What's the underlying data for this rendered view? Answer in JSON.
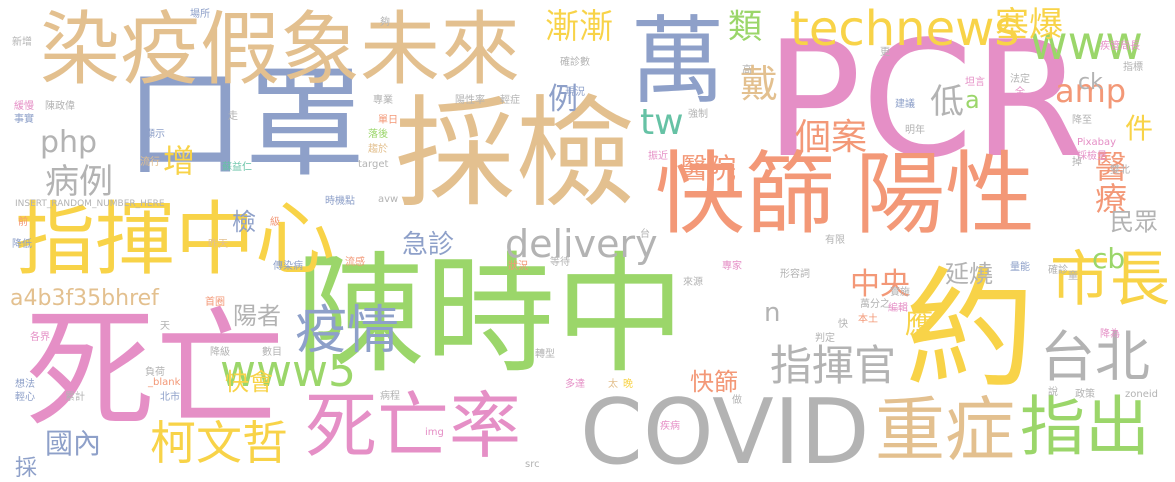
{
  "words": [
    {
      "text": "PCR",
      "color": "#e58fc6"
    },
    {
      "text": "陳時中",
      "color": "#9bd66a"
    },
    {
      "text": "採檢",
      "color": "#e3c08f"
    },
    {
      "text": "口罩",
      "color": "#8ea0c9"
    },
    {
      "text": "染疫假象未來",
      "color": "#e3c08f"
    },
    {
      "text": "快篩",
      "color": "#f39877"
    },
    {
      "text": "陽性",
      "color": "#f39877"
    },
    {
      "text": "指揮中心",
      "color": "#f8d348"
    },
    {
      "text": "死亡",
      "color": "#e58fc6"
    },
    {
      "text": "約",
      "color": "#f8d348"
    },
    {
      "text": "萬",
      "color": "#8ea0c9"
    },
    {
      "text": "COVID",
      "color": "#b3b3b3"
    },
    {
      "text": "死亡率",
      "color": "#e58fc6"
    },
    {
      "text": "重症",
      "color": "#e3c08f"
    },
    {
      "text": "指出",
      "color": "#9bd66a"
    },
    {
      "text": "市長",
      "color": "#f8d348"
    },
    {
      "text": "台北",
      "color": "#b3b3b3"
    },
    {
      "text": "疫情",
      "color": "#8ea0c9"
    },
    {
      "text": "technews",
      "color": "#f8d348"
    },
    {
      "text": "www",
      "color": "#9bd66a"
    },
    {
      "text": "柯文哲",
      "color": "#f8d348"
    },
    {
      "text": "指揮官",
      "color": "#b3b3b3"
    },
    {
      "text": "www5",
      "color": "#9bd66a"
    },
    {
      "text": "delivery",
      "color": "#b3b3b3"
    },
    {
      "text": "漸漸",
      "color": "#f8d348"
    },
    {
      "text": "類",
      "color": "#9bd66a"
    },
    {
      "text": "塞爆",
      "color": "#f8d348"
    },
    {
      "text": "amp",
      "color": "#f39877"
    },
    {
      "text": "ck",
      "color": "#b3b3b3"
    },
    {
      "text": "tw",
      "color": "#66c2a5"
    },
    {
      "text": "戴",
      "color": "#e3c08f"
    },
    {
      "text": "例",
      "color": "#8ea0c9"
    },
    {
      "text": "低",
      "color": "#b3b3b3"
    },
    {
      "text": "個案",
      "color": "#f39877"
    },
    {
      "text": "件",
      "color": "#f8d348"
    },
    {
      "text": "醫療",
      "color": "#f39877"
    },
    {
      "text": "醫院",
      "color": "#f39877"
    },
    {
      "text": "民眾",
      "color": "#b3b3b3"
    },
    {
      "text": "cb",
      "color": "#9bd66a"
    },
    {
      "text": "php",
      "color": "#b3b3b3"
    },
    {
      "text": "病例",
      "color": "#b3b3b3"
    },
    {
      "text": "增",
      "color": "#f8d348"
    },
    {
      "text": "中央",
      "color": "#f39877"
    },
    {
      "text": "延燒",
      "color": "#b3b3b3"
    },
    {
      "text": "急診",
      "color": "#8ea0c9"
    },
    {
      "text": "檢",
      "color": "#8ea0c9"
    },
    {
      "text": "陽者",
      "color": "#b3b3b3"
    },
    {
      "text": "a4b3f35bhref",
      "color": "#e3c08f"
    },
    {
      "text": "快會",
      "color": "#f8d348"
    },
    {
      "text": "國內",
      "color": "#8ea0c9"
    },
    {
      "text": "快篩",
      "color": "#f39877"
    },
    {
      "text": "應",
      "color": "#f8d348"
    },
    {
      "text": "n",
      "color": "#b3b3b3"
    },
    {
      "text": "採",
      "color": "#8ea0c9"
    },
    {
      "text": "a",
      "color": "#9bd66a"
    },
    {
      "text": "新增",
      "color": "#b3b3b3"
    },
    {
      "text": "場所",
      "color": "#8ea0c9"
    },
    {
      "text": "夠",
      "color": "#b3b3b3"
    },
    {
      "text": "疾管局長",
      "color": "#e58fc6"
    },
    {
      "text": "指標",
      "color": "#b3b3b3"
    },
    {
      "text": "高",
      "color": "#b3b3b3"
    },
    {
      "text": "更",
      "color": "#b3b3b3"
    },
    {
      "text": "確診數",
      "color": "#b3b3b3"
    },
    {
      "text": "現況",
      "color": "#8ea0c9"
    },
    {
      "text": "緩慢",
      "color": "#e58fc6"
    },
    {
      "text": "陳政偉",
      "color": "#b3b3b3"
    },
    {
      "text": "事實",
      "color": "#8ea0c9"
    },
    {
      "text": "專業",
      "color": "#b3b3b3"
    },
    {
      "text": "陽性率",
      "color": "#b3b3b3"
    },
    {
      "text": "輕症",
      "color": "#b3b3b3"
    },
    {
      "text": "單日",
      "color": "#f39877"
    },
    {
      "text": "落後",
      "color": "#9bd66a"
    },
    {
      "text": "趨於",
      "color": "#e3c08f"
    },
    {
      "text": "顯示",
      "color": "#8ea0c9"
    },
    {
      "text": "流行",
      "color": "#e3c08f"
    },
    {
      "text": "蘇益仁",
      "color": "#66c2a5"
    },
    {
      "text": "target",
      "color": "#b3b3b3"
    },
    {
      "text": "時機點",
      "color": "#8ea0c9"
    },
    {
      "text": "INSERT_RANDOM_NUMBER_HERE",
      "color": "#b3b3b3"
    },
    {
      "text": "avw",
      "color": "#b3b3b3"
    },
    {
      "text": "強制",
      "color": "#b3b3b3"
    },
    {
      "text": "走",
      "color": "#b3b3b3"
    },
    {
      "text": "坦言",
      "color": "#e58fc6"
    },
    {
      "text": "全",
      "color": "#e58fc6"
    },
    {
      "text": "法定",
      "color": "#b3b3b3"
    },
    {
      "text": "建議",
      "color": "#8ea0c9"
    },
    {
      "text": "明年",
      "color": "#b3b3b3"
    },
    {
      "text": "降至",
      "color": "#b3b3b3"
    },
    {
      "text": "Pixabay",
      "color": "#e58fc6"
    },
    {
      "text": "採檢量",
      "color": "#e58fc6"
    },
    {
      "text": "雙北",
      "color": "#b3b3b3"
    },
    {
      "text": "掉",
      "color": "#b3b3b3"
    },
    {
      "text": "振近",
      "color": "#e58fc6"
    },
    {
      "text": "前",
      "color": "#f39877"
    },
    {
      "text": "級",
      "color": "#f39877"
    },
    {
      "text": "降低",
      "color": "#8ea0c9"
    },
    {
      "text": "台",
      "color": "#b3b3b3"
    },
    {
      "text": "有限",
      "color": "#b3b3b3"
    },
    {
      "text": "流感",
      "color": "#f39877"
    },
    {
      "text": "昨天",
      "color": "#e3c08f"
    },
    {
      "text": "傳染病",
      "color": "#8ea0c9"
    },
    {
      "text": "狀況",
      "color": "#f39877"
    },
    {
      "text": "等待",
      "color": "#b3b3b3"
    },
    {
      "text": "來源",
      "color": "#b3b3b3"
    },
    {
      "text": "專家",
      "color": "#e58fc6"
    },
    {
      "text": "形容詞",
      "color": "#b3b3b3"
    },
    {
      "text": "量能",
      "color": "#8ea0c9"
    },
    {
      "text": "確診",
      "color": "#b3b3b3"
    },
    {
      "text": "童",
      "color": "#b3b3b3"
    },
    {
      "text": "首圈",
      "color": "#f39877"
    },
    {
      "text": "天",
      "color": "#b3b3b3"
    },
    {
      "text": "各界",
      "color": "#e58fc6"
    },
    {
      "text": "降級",
      "color": "#b3b3b3"
    },
    {
      "text": "數目",
      "color": "#b3b3b3"
    },
    {
      "text": "負荷",
      "color": "#b3b3b3"
    },
    {
      "text": "_blank",
      "color": "#f39877"
    },
    {
      "text": "轉型",
      "color": "#b3b3b3"
    },
    {
      "text": "北市",
      "color": "#8ea0c9"
    },
    {
      "text": "多達",
      "color": "#e58fc6"
    },
    {
      "text": "太",
      "color": "#e3c08f"
    },
    {
      "text": "晚",
      "color": "#f8d348"
    },
    {
      "text": "做",
      "color": "#b3b3b3"
    },
    {
      "text": "病程",
      "color": "#b3b3b3"
    },
    {
      "text": "疾病",
      "color": "#e58fc6"
    },
    {
      "text": "想法",
      "color": "#8ea0c9"
    },
    {
      "text": "輕心",
      "color": "#8ea0c9"
    },
    {
      "text": "累計",
      "color": "#b3b3b3"
    },
    {
      "text": "img",
      "color": "#e58fc6"
    },
    {
      "text": "src",
      "color": "#b3b3b3"
    },
    {
      "text": "實施",
      "color": "#b3b3b3"
    },
    {
      "text": "萬分之",
      "color": "#b3b3b3"
    },
    {
      "text": "編輯",
      "color": "#e58fc6"
    },
    {
      "text": "本土",
      "color": "#f39877"
    },
    {
      "text": "判定",
      "color": "#b3b3b3"
    },
    {
      "text": "快",
      "color": "#b3b3b3"
    },
    {
      "text": "降為",
      "color": "#e58fc6"
    },
    {
      "text": "政策",
      "color": "#b3b3b3"
    },
    {
      "text": "說",
      "color": "#b3b3b3"
    },
    {
      "text": "zoneid",
      "color": "#b3b3b3"
    }
  ]
}
